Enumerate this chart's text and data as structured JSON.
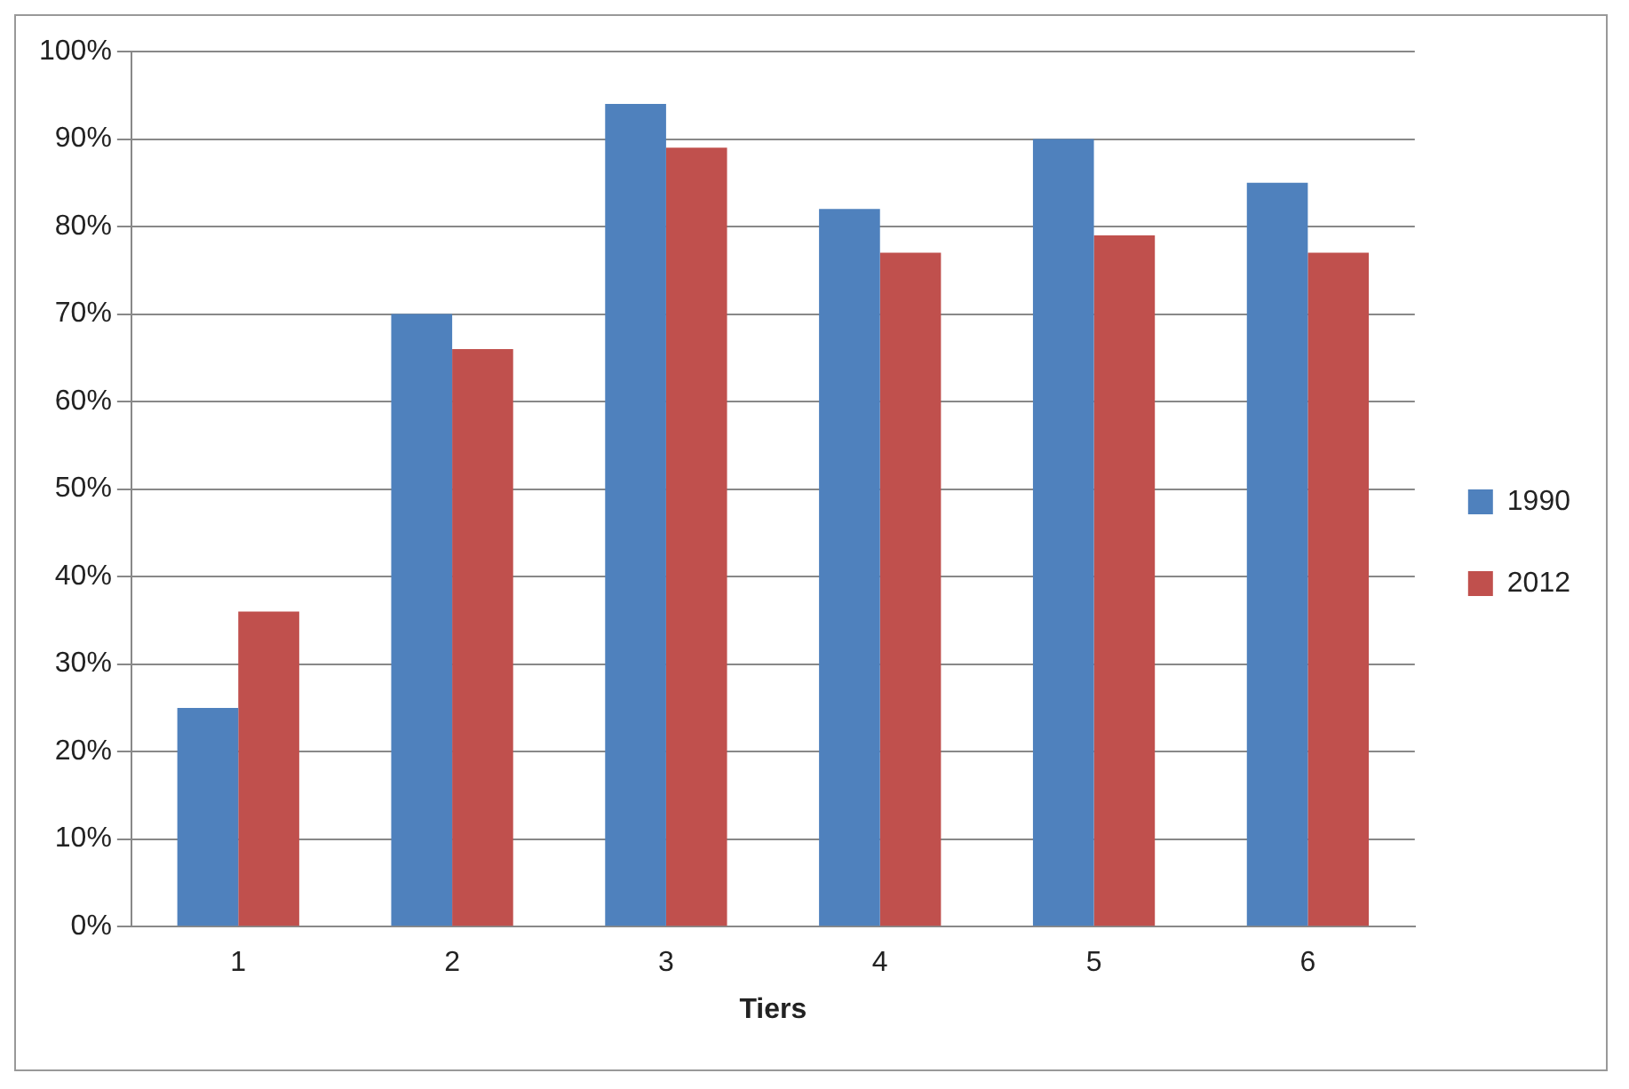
{
  "chart_data": {
    "type": "bar",
    "xlabel": "Tiers",
    "categories": [
      "1",
      "2",
      "3",
      "4",
      "5",
      "6"
    ],
    "series": [
      {
        "name": "1990",
        "color": "#4f81bd",
        "values": [
          25,
          70,
          94,
          82,
          90,
          85
        ]
      },
      {
        "name": "2012",
        "color": "#c0504d",
        "values": [
          36,
          66,
          89,
          77,
          79,
          77
        ]
      }
    ],
    "ylim": [
      0,
      100
    ],
    "yticks": [
      {
        "value": 0,
        "label": "0%"
      },
      {
        "value": 10,
        "label": "10%"
      },
      {
        "value": 20,
        "label": "20%"
      },
      {
        "value": 30,
        "label": "30%"
      },
      {
        "value": 40,
        "label": "40%"
      },
      {
        "value": 50,
        "label": "50%"
      },
      {
        "value": 60,
        "label": "60%"
      },
      {
        "value": 70,
        "label": "70%"
      },
      {
        "value": 80,
        "label": "80%"
      },
      {
        "value": 90,
        "label": "90%"
      },
      {
        "value": 100,
        "label": "100%"
      }
    ],
    "grid": "y",
    "legend": "right"
  }
}
